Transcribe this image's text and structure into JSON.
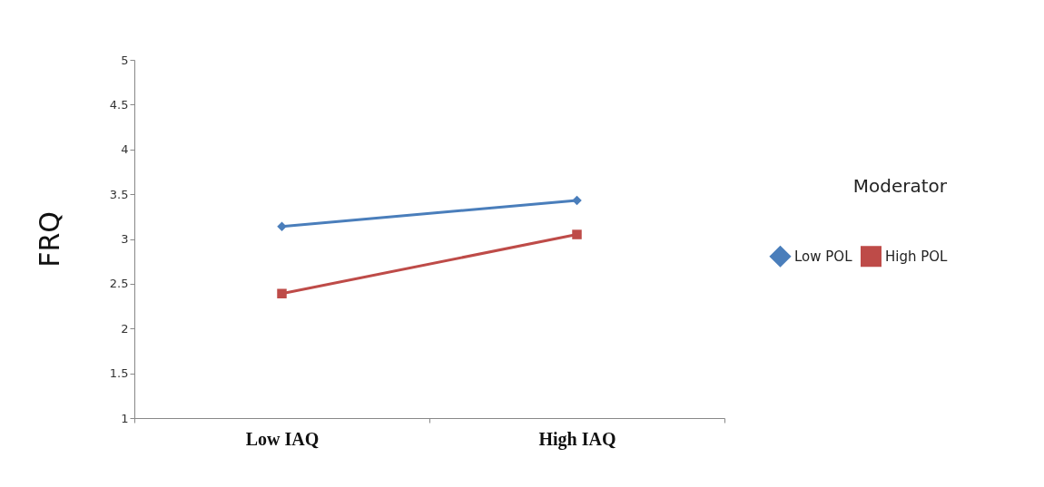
{
  "chart_data": {
    "type": "line",
    "ylabel": "FRQ",
    "legend_title": "Moderator",
    "categories": [
      "Low IAQ",
      "High IAQ"
    ],
    "series": [
      {
        "name": "Low POL",
        "color": "#4a7ebb",
        "marker": "diamond",
        "values": [
          3.14,
          3.43
        ]
      },
      {
        "name": "High POL",
        "color": "#be4b48",
        "marker": "square",
        "values": [
          2.39,
          3.05
        ]
      }
    ],
    "ylim": [
      1,
      5
    ],
    "yticks": [
      1,
      1.5,
      2,
      2.5,
      3,
      3.5,
      4,
      4.5,
      5
    ],
    "grid": false,
    "legend": "right"
  }
}
